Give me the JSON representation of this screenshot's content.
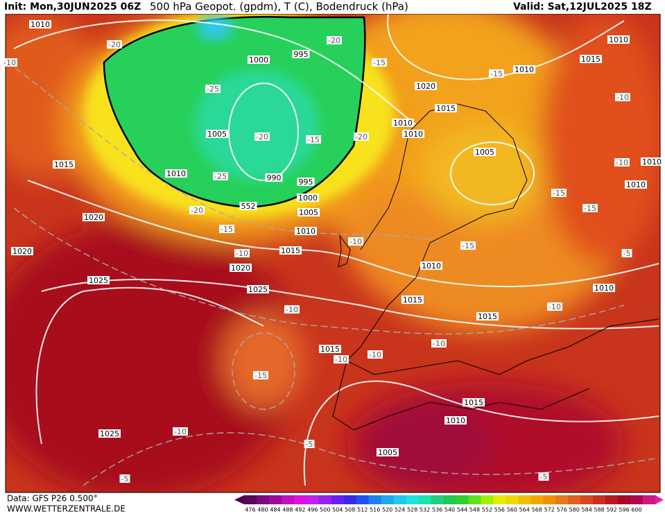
{
  "header": {
    "init": "Init: Mon,30JUN2025 06Z",
    "title": "500 hPa Geopot. (gpdm), T (C), Bodendruck (hPa)",
    "valid": "Valid: Sat,12JUL2025 18Z"
  },
  "footer": {
    "data_source": "Data: GFS P26 0.500°",
    "website": "WWW.WETTERZENTRALE.DE"
  },
  "colorbar_labels": [
    "476",
    "480",
    "484",
    "488",
    "492",
    "496",
    "500",
    "504",
    "508",
    "512",
    "516",
    "520",
    "524",
    "528",
    "532",
    "536",
    "540",
    "544",
    "548",
    "552",
    "556",
    "560",
    "564",
    "568",
    "572",
    "576",
    "580",
    "584",
    "588",
    "592",
    "596",
    "600"
  ],
  "isobar_labels": [
    "1010",
    "1010",
    "1015",
    "1010",
    "1020",
    "1015",
    "1010",
    "1010",
    "1005",
    "1010",
    "1010",
    "995",
    "1000",
    "1005",
    "1010",
    "990",
    "995",
    "1000",
    "1005",
    "1010",
    "1015",
    "1020",
    "1015",
    "1020",
    "1020",
    "1025",
    "1025",
    "1010",
    "1015",
    "1015",
    "1010",
    "1015",
    "1015",
    "1010",
    "1005",
    "1025",
    "552"
  ],
  "temperature_labels": [
    "-20",
    "-10",
    "-20",
    "-15",
    "-25",
    "-20",
    "-15",
    "-20",
    "-15",
    "-10",
    "-10",
    "-15",
    "-15",
    "-25",
    "-20",
    "-15",
    "-10",
    "-10",
    "-15",
    "-10",
    "-10",
    "-5",
    "-10",
    "-10",
    "-10",
    "-15",
    "-10",
    "-5",
    "-5",
    "-5"
  ]
}
